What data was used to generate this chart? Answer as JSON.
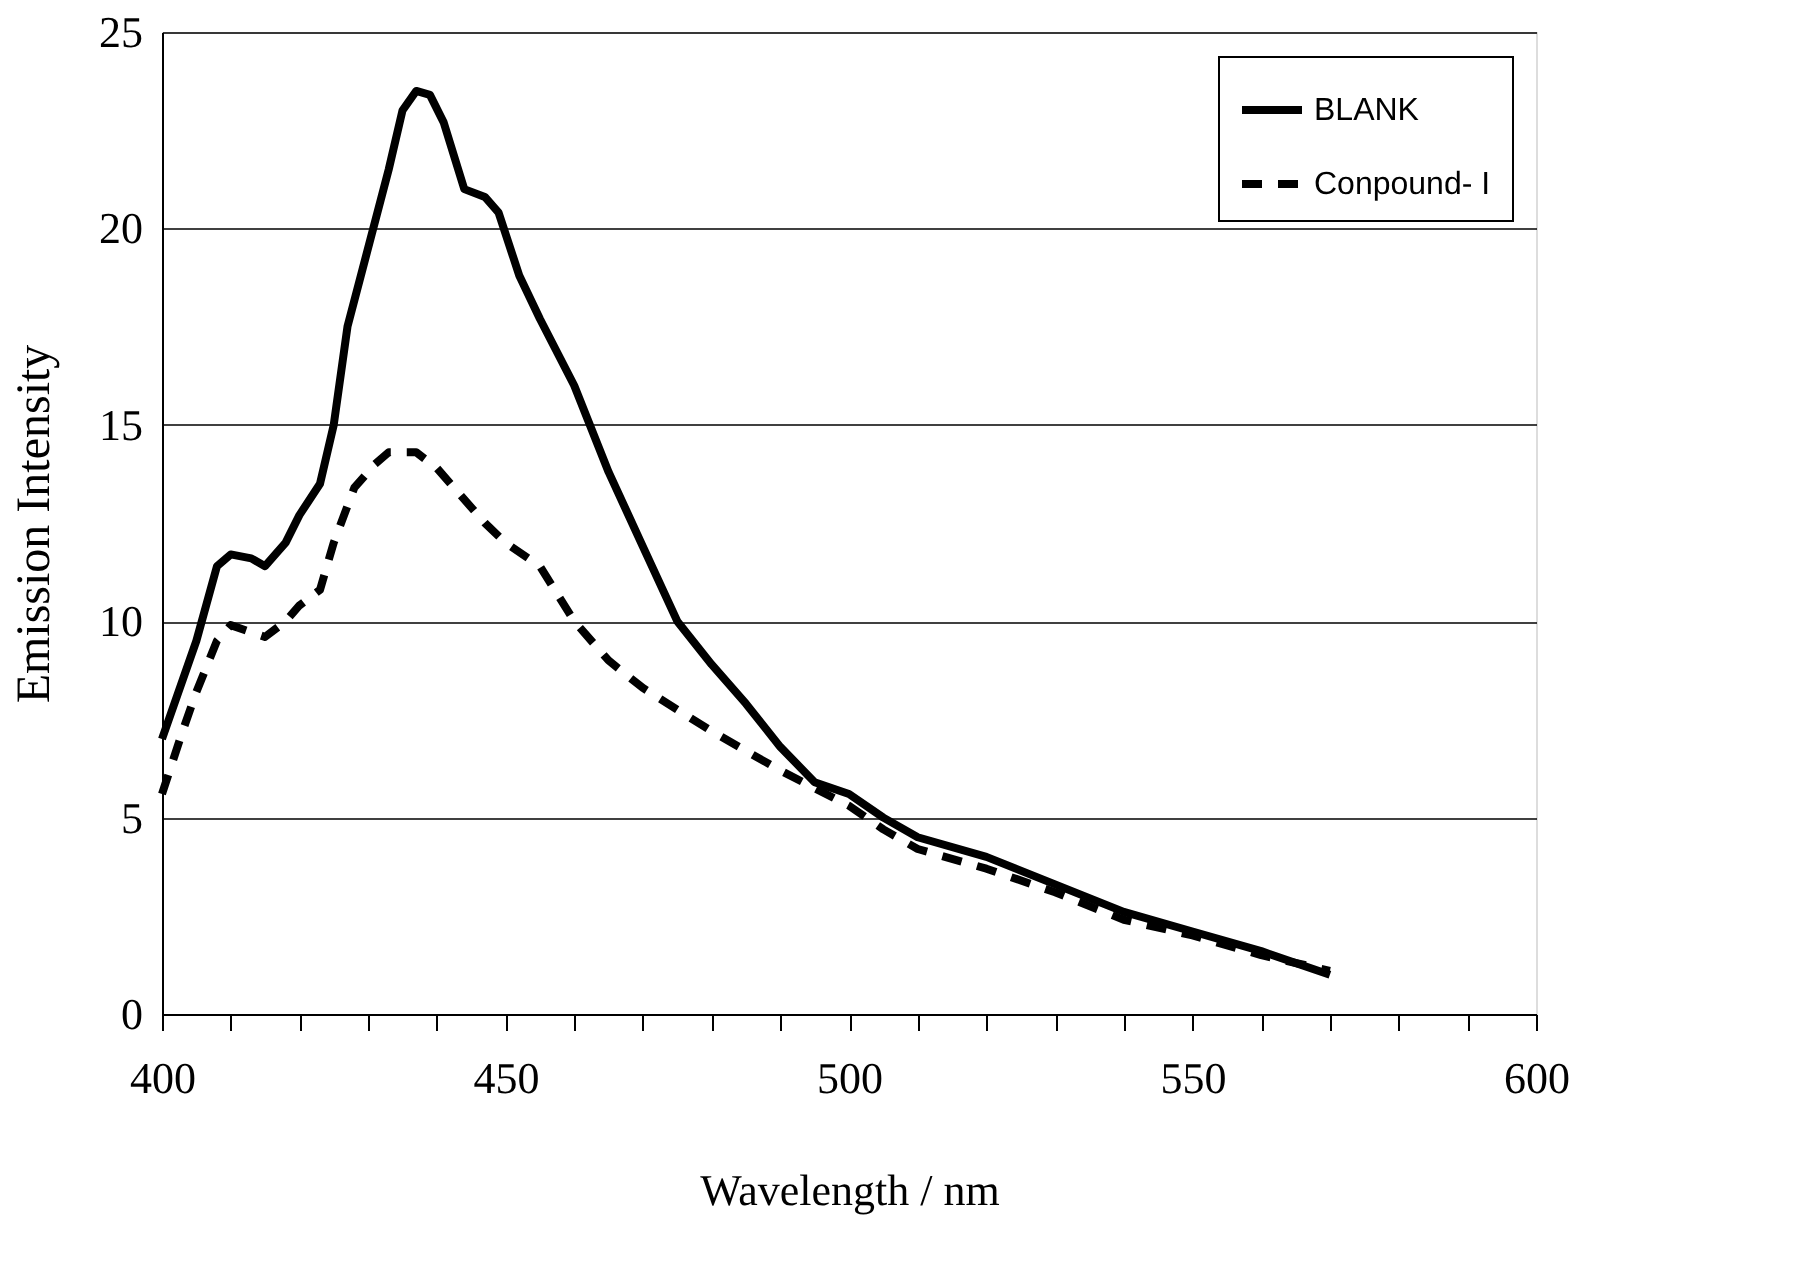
{
  "chart_data": {
    "type": "line",
    "xlabel": "Wavelength / nm",
    "ylabel": "Emission Intensity",
    "xlim": [
      400,
      600
    ],
    "ylim": [
      0,
      25
    ],
    "xticks": [
      400,
      {
        "value": 410,
        "label": null
      },
      {
        "value": 420,
        "label": null
      },
      {
        "value": 430,
        "label": null
      },
      {
        "value": 440,
        "label": null
      },
      450,
      {
        "value": 460,
        "label": null
      },
      {
        "value": 470,
        "label": null
      },
      {
        "value": 480,
        "label": null
      },
      {
        "value": 490,
        "label": null
      },
      500,
      {
        "value": 510,
        "label": null
      },
      {
        "value": 520,
        "label": null
      },
      {
        "value": 530,
        "label": null
      },
      {
        "value": 540,
        "label": null
      },
      550,
      {
        "value": 560,
        "label": null
      },
      {
        "value": 570,
        "label": null
      },
      {
        "value": 580,
        "label": null
      },
      {
        "value": 590,
        "label": null
      },
      600
    ],
    "yticks": [
      0,
      5,
      10,
      15,
      20,
      25
    ],
    "grid": "y",
    "legend": "top right",
    "marker": "none",
    "series": [
      {
        "name": "BLANK",
        "color": "#000000",
        "line_style": "solid",
        "x": [
          400,
          405,
          408,
          410,
          413,
          415,
          418,
          420,
          423,
          425,
          427,
          430,
          433,
          435,
          437,
          439,
          441,
          444,
          447,
          449,
          452,
          455,
          460,
          465,
          470,
          475,
          480,
          485,
          490,
          495,
          500,
          505,
          510,
          520,
          530,
          540,
          550,
          560,
          570
        ],
        "values": [
          7.0,
          9.5,
          11.4,
          11.7,
          11.6,
          11.4,
          12.0,
          12.7,
          13.5,
          15.0,
          17.5,
          19.5,
          21.5,
          23.0,
          23.5,
          23.4,
          22.7,
          21.0,
          20.8,
          20.4,
          18.8,
          17.7,
          16.0,
          13.8,
          11.9,
          10.0,
          8.9,
          7.9,
          6.8,
          5.9,
          5.6,
          5.0,
          4.5,
          4.0,
          3.3,
          2.6,
          2.1,
          1.6,
          1.0
        ]
      },
      {
        "name": "Conpound- I",
        "color": "#000000",
        "line_style": "dashed",
        "x": [
          400,
          403,
          405,
          408,
          410,
          415,
          418,
          420,
          423,
          425,
          428,
          431,
          433,
          437,
          440,
          443,
          447,
          450,
          455,
          460,
          465,
          470,
          480,
          490,
          500,
          505,
          510,
          520,
          530,
          540,
          550,
          560,
          570
        ],
        "values": [
          5.6,
          7.2,
          8.2,
          9.5,
          9.9,
          9.6,
          10.0,
          10.4,
          10.8,
          12.0,
          13.4,
          14.0,
          14.3,
          14.3,
          13.9,
          13.3,
          12.5,
          12.0,
          11.4,
          10.0,
          9.0,
          8.3,
          7.2,
          6.2,
          5.3,
          4.7,
          4.2,
          3.7,
          3.1,
          2.4,
          2.0,
          1.5,
          1.1
        ]
      }
    ]
  }
}
